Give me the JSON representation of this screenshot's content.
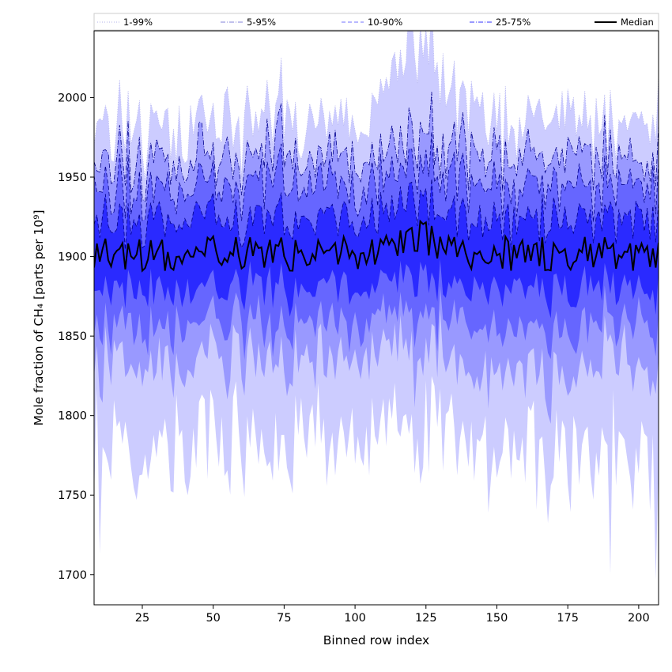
{
  "chart_data": {
    "type": "area",
    "title": "",
    "xlabel": "Binned row index",
    "ylabel": "Mole fraction of CH₄ [parts per 10⁹]",
    "xlim": [
      8,
      207
    ],
    "ylim": [
      1681,
      2042
    ],
    "x_ticks": [
      25,
      50,
      75,
      100,
      125,
      150,
      175,
      200
    ],
    "y_ticks": [
      1700,
      1750,
      1800,
      1850,
      1900,
      1950,
      2000
    ],
    "grid": false,
    "legend_position": "top (above plot)",
    "x_range": [
      8,
      207
    ],
    "bands": [
      {
        "name": "1-99%",
        "color": "#ccccff",
        "line_color": "#b8b8ee",
        "line_style": "dotted",
        "lower_approx": 1785,
        "upper_approx": 1980
      },
      {
        "name": "5-95%",
        "color": "#9999ff",
        "line_color": "#00008b",
        "line_style": "dashdot",
        "lower_approx": 1828,
        "upper_approx": 1960
      },
      {
        "name": "10-90%",
        "color": "#6666ff",
        "line_color": "#00008b",
        "line_style": "dashed",
        "lower_approx": 1852,
        "upper_approx": 1945
      },
      {
        "name": "25-75%",
        "color": "#2a2aff",
        "line_color": "#00008b",
        "line_style": "dashed",
        "lower_approx": 1875,
        "upper_approx": 1925
      }
    ],
    "median": {
      "name": "Median",
      "color": "#000000",
      "approx_level": 1902,
      "approx_range": [
        1882,
        1933
      ],
      "peak_x": 121
    },
    "notable_points": [
      {
        "x": 121,
        "y": 2026,
        "label": "max upper (1-99%)"
      },
      {
        "x": 10,
        "y": 1713,
        "label": "low dip"
      },
      {
        "x": 190,
        "y": 1700,
        "label": "low dip"
      },
      {
        "x": 206,
        "y": 1697,
        "label": "low dip"
      }
    ],
    "legend": [
      {
        "label": "1-99%",
        "color": "#b0b0e8",
        "style": "dotted"
      },
      {
        "label": "5-95%",
        "color": "#8080d8",
        "style": "dashdot"
      },
      {
        "label": "10-90%",
        "color": "#7070ff",
        "style": "dashed"
      },
      {
        "label": "25-75%",
        "color": "#3333ff",
        "style": "dashdot"
      },
      {
        "label": "Median",
        "color": "#000000",
        "style": "solid"
      }
    ]
  }
}
